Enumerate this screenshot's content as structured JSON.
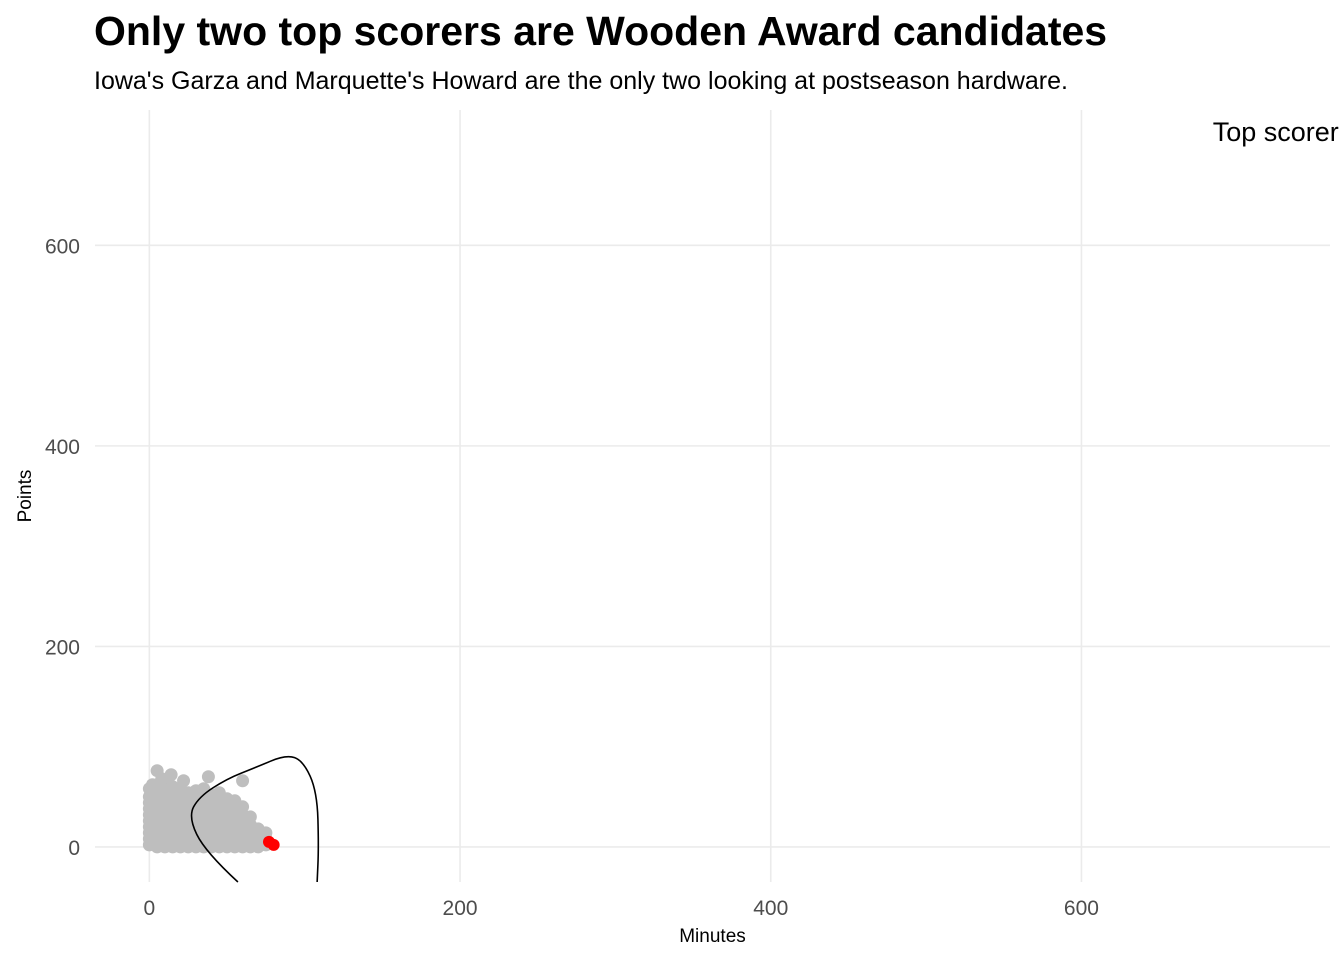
{
  "title": "Only two top scorers are Wooden Award candidates",
  "subtitle": "Iowa's Garza and Marquette's Howard are the only two looking at postseason hardware.",
  "colors": {
    "background": "#ffffff",
    "grid": "#ebebeb",
    "others": "#bebebe",
    "highlight": "#ff0000",
    "annotation_curve": "#000000",
    "tick_text": "#4d4d4d"
  },
  "chart_data": {
    "type": "scatter",
    "xlabel": "Minutes",
    "ylabel": "Points",
    "xlim": [
      -35,
      760
    ],
    "ylim": [
      -35,
      735
    ],
    "x_ticks": [
      0,
      200,
      400,
      600
    ],
    "y_ticks": [
      0,
      200,
      400,
      600
    ],
    "x_tick_labels": [
      "0",
      "200",
      "400",
      "600"
    ],
    "y_tick_labels": [
      "0",
      "200",
      "400",
      "600"
    ],
    "grid": true,
    "legend": "none",
    "annotation": {
      "text": "Top scorer",
      "x": 680,
      "y": 700
    },
    "series": [
      {
        "highlighted": false,
        "color": "#bebebe",
        "x": [
          0,
          0,
          0,
          0,
          0,
          0,
          0,
          0,
          0,
          0,
          5,
          5,
          5,
          5,
          5,
          5,
          5,
          5,
          5,
          5,
          5,
          10,
          10,
          10,
          10,
          10,
          10,
          10,
          10,
          10,
          10,
          10,
          15,
          15,
          15,
          15,
          15,
          15,
          15,
          15,
          15,
          15,
          20,
          20,
          20,
          20,
          20,
          20,
          20,
          20,
          20,
          20,
          25,
          25,
          25,
          25,
          25,
          25,
          25,
          25,
          25,
          30,
          30,
          30,
          30,
          30,
          30,
          30,
          30,
          30,
          35,
          35,
          35,
          35,
          35,
          35,
          35,
          35,
          35,
          40,
          40,
          40,
          40,
          40,
          40,
          40,
          40,
          45,
          45,
          45,
          45,
          45,
          45,
          45,
          45,
          50,
          50,
          50,
          50,
          50,
          50,
          50,
          55,
          55,
          55,
          55,
          55,
          55,
          55,
          60,
          60,
          60,
          60,
          60,
          60,
          65,
          65,
          65,
          65,
          65,
          70,
          70,
          70,
          70,
          75,
          75,
          75,
          5,
          14,
          38,
          60,
          2,
          8,
          22
        ],
        "y": [
          2,
          8,
          14,
          20,
          26,
          32,
          38,
          44,
          50,
          58,
          0,
          6,
          12,
          18,
          24,
          30,
          36,
          42,
          48,
          54,
          62,
          0,
          6,
          12,
          18,
          24,
          30,
          36,
          42,
          48,
          56,
          64,
          0,
          6,
          12,
          18,
          24,
          30,
          36,
          42,
          50,
          60,
          0,
          6,
          12,
          18,
          24,
          30,
          36,
          44,
          52,
          58,
          0,
          6,
          12,
          18,
          24,
          30,
          38,
          46,
          54,
          0,
          6,
          12,
          18,
          24,
          32,
          40,
          48,
          56,
          0,
          6,
          12,
          18,
          26,
          34,
          42,
          50,
          58,
          0,
          6,
          12,
          20,
          28,
          36,
          44,
          52,
          0,
          6,
          14,
          22,
          30,
          38,
          46,
          54,
          0,
          8,
          16,
          24,
          32,
          40,
          48,
          0,
          8,
          16,
          24,
          32,
          40,
          46,
          0,
          8,
          16,
          24,
          32,
          40,
          0,
          6,
          14,
          22,
          30,
          0,
          6,
          12,
          18,
          2,
          8,
          14,
          76,
          72,
          70,
          66,
          62,
          68,
          66
        ]
      },
      {
        "highlighted": true,
        "color": "#ff0000",
        "x": [
          77,
          80
        ],
        "y": [
          5,
          2
        ]
      }
    ]
  }
}
